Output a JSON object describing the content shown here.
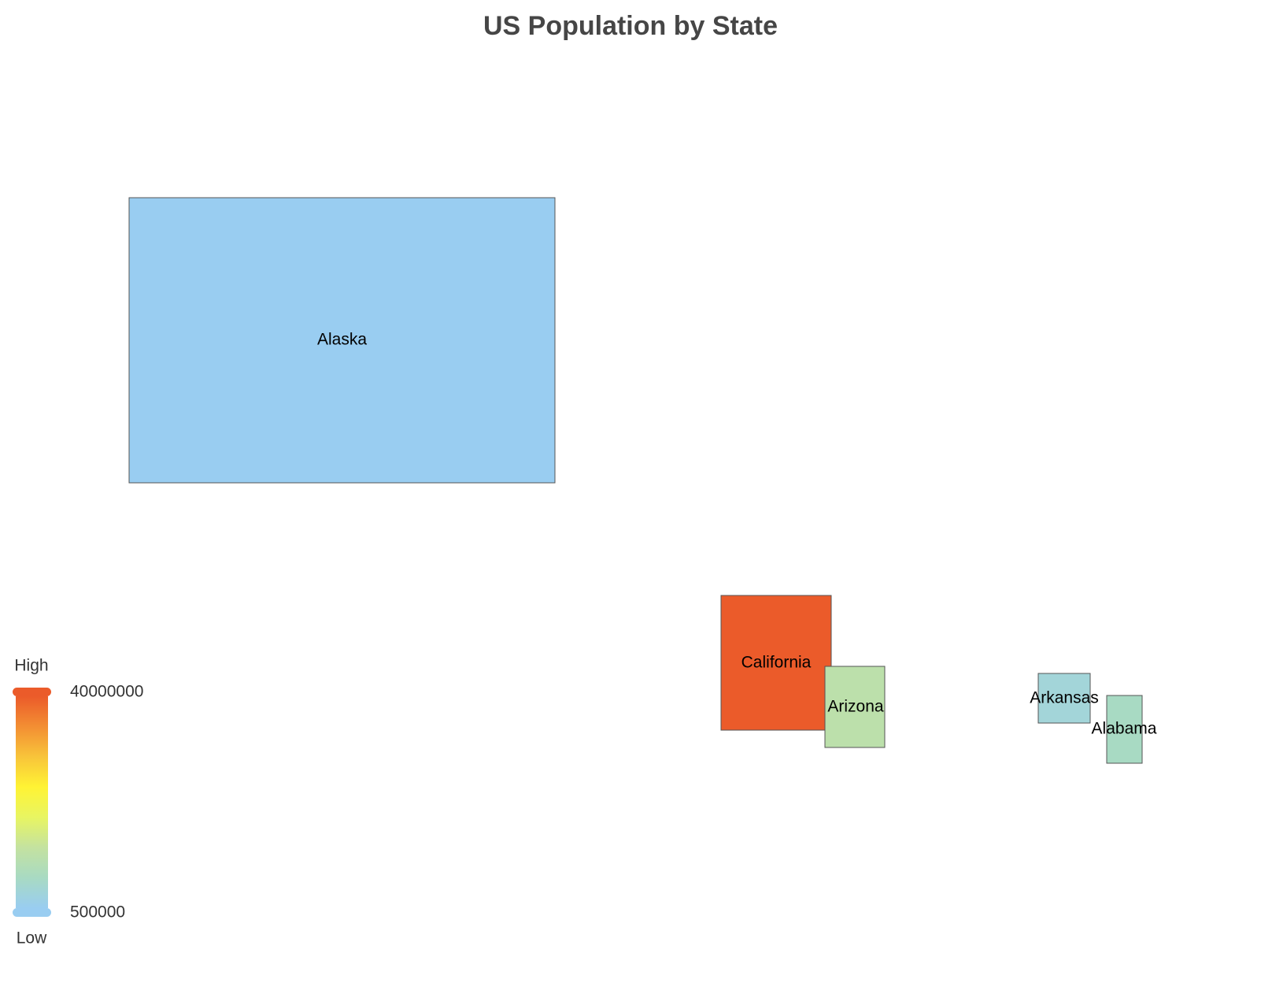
{
  "chart_data": {
    "type": "map",
    "title": "US Population by State",
    "regions": [
      {
        "name": "Alaska",
        "value": 700000,
        "color": "#99cdf1"
      },
      {
        "name": "California",
        "value": 39500000,
        "color": "#eb5b2a"
      },
      {
        "name": "Arizona",
        "value": 7300000,
        "color": "#bce0ab"
      },
      {
        "name": "Arkansas",
        "value": 3000000,
        "color": "#a3d5d9"
      },
      {
        "name": "Alabama",
        "value": 5000000,
        "color": "#a8dac3"
      }
    ],
    "colorscale": {
      "min": 500000,
      "max": 40000000,
      "min_label": "500000",
      "max_label": "40000000",
      "high_label": "High",
      "low_label": "Low",
      "stops": [
        "#99cdf1",
        "#a8dac3",
        "#c4e2a0",
        "#e8f562",
        "#fff334",
        "#f8c43a",
        "#f38e33",
        "#eb5b2a"
      ]
    }
  }
}
